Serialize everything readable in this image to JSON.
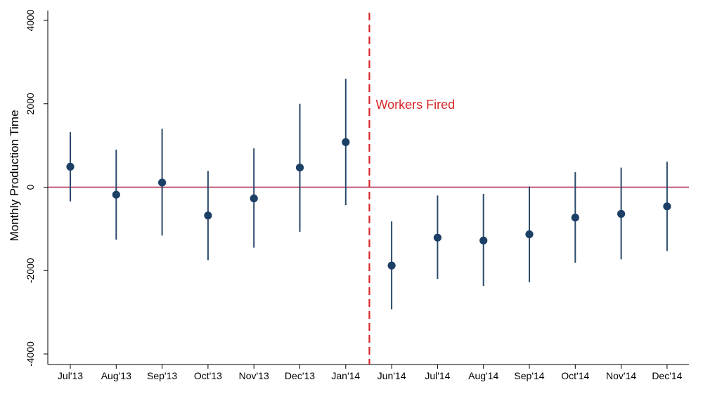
{
  "chart_data": {
    "type": "scatter",
    "title": "",
    "xlabel": "",
    "ylabel": "Monthly Production Time",
    "ylim": [
      -4000,
      4000
    ],
    "yticks": [
      "4000",
      "2000",
      "0",
      "-2000",
      "-4000"
    ],
    "ytick_values": [
      4000,
      2000,
      0,
      -2000,
      -4000
    ],
    "categories": [
      "Jul'13",
      "Aug'13",
      "Sep'13",
      "Oct'13",
      "Nov'13",
      "Dec'13",
      "Jan'14",
      "Jun'14",
      "Jul'14",
      "Aug'14",
      "Sep'14",
      "Oct'14",
      "Nov'14",
      "Dec'14"
    ],
    "series": [
      {
        "estimate": [
          490,
          -180,
          110,
          -680,
          -270,
          470,
          1080,
          -1880,
          -1210,
          -1280,
          -1130,
          -730,
          -640,
          -460
        ],
        "ci_low": [
          -340,
          -1260,
          -1160,
          -1750,
          -1450,
          -1070,
          -430,
          -2930,
          -2200,
          -2370,
          -2280,
          -1810,
          -1730,
          -1530
        ],
        "ci_high": [
          1320,
          900,
          1400,
          390,
          930,
          2000,
          2600,
          -820,
          -200,
          -160,
          20,
          360,
          470,
          610
        ]
      }
    ],
    "reference_line": {
      "value": 0,
      "color": "#b0254a"
    },
    "event_line": {
      "between": [
        "Jan'14",
        "Jun'14"
      ],
      "label": "Workers Fired",
      "color": "#d62728",
      "style": "dashed"
    },
    "marker_color": "#1c3f66",
    "grid": false
  }
}
